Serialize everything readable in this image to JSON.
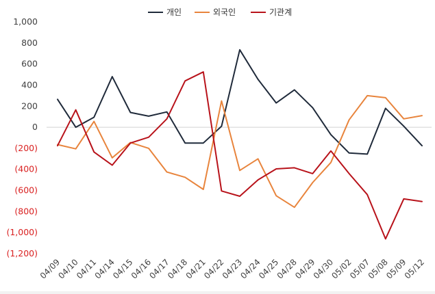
{
  "chart_data": {
    "type": "line",
    "categories": [
      "04/09",
      "04/10",
      "04/11",
      "04/14",
      "04/15",
      "04/16",
      "04/17",
      "04/18",
      "04/21",
      "04/22",
      "04/23",
      "04/24",
      "04/25",
      "04/28",
      "04/29",
      "04/30",
      "05/02",
      "05/07",
      "05/08",
      "05/09",
      "05/12"
    ],
    "series": [
      {
        "name": "개인",
        "color": "#1f2a3a",
        "values": [
          265,
          0,
          95,
          480,
          140,
          105,
          145,
          -150,
          -150,
          10,
          735,
          455,
          230,
          355,
          185,
          -70,
          -245,
          -255,
          180,
          10,
          -175
        ]
      },
      {
        "name": "외국인",
        "color": "#e8843c",
        "values": [
          -165,
          -205,
          55,
          -290,
          -145,
          -200,
          -425,
          -475,
          -590,
          250,
          -410,
          -300,
          -650,
          -760,
          -525,
          -335,
          70,
          300,
          280,
          80,
          110
        ]
      },
      {
        "name": "기관계",
        "color": "#b8121a",
        "values": [
          -175,
          165,
          -235,
          -360,
          -150,
          -95,
          80,
          440,
          525,
          -605,
          -655,
          -500,
          -395,
          -385,
          -440,
          -225,
          -440,
          -640,
          -1060,
          -680,
          -705
        ]
      }
    ],
    "y_ticks": [
      {
        "value": 1000,
        "label": "1,000"
      },
      {
        "value": 800,
        "label": "800"
      },
      {
        "value": 600,
        "label": "600"
      },
      {
        "value": 400,
        "label": "400"
      },
      {
        "value": 200,
        "label": "200"
      },
      {
        "value": 0,
        "label": "0"
      },
      {
        "value": -200,
        "label": "(200)"
      },
      {
        "value": -400,
        "label": "(400)"
      },
      {
        "value": -600,
        "label": "(600)"
      },
      {
        "value": -800,
        "label": "(800)"
      },
      {
        "value": -1000,
        "label": "(1,000)"
      },
      {
        "value": -1200,
        "label": "(1,200)"
      }
    ],
    "ylim": [
      -1200,
      1000
    ],
    "positive_tick_color": "#404040",
    "negative_tick_color": "#d92020",
    "x_tick_color": "#404040",
    "zero_line_color": "#d0d0d0",
    "grid": false,
    "legend_position": "top-center"
  }
}
